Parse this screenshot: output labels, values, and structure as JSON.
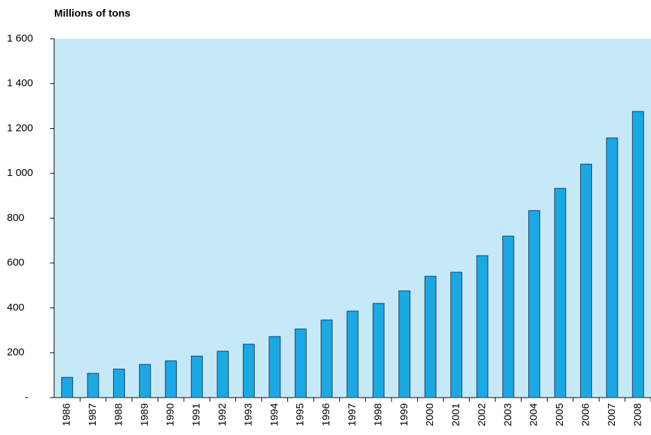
{
  "chart_data": {
    "type": "bar",
    "y_label": "Millions of tons",
    "categories": [
      "1986",
      "1987",
      "1988",
      "1989",
      "1990",
      "1991",
      "1992",
      "1993",
      "1994",
      "1995",
      "1996",
      "1997",
      "1998",
      "1999",
      "2000",
      "2001",
      "2002",
      "2003",
      "2004",
      "2005",
      "2006",
      "2007",
      "2008"
    ],
    "values": [
      90,
      108,
      127,
      148,
      164,
      185,
      207,
      238,
      272,
      306,
      346,
      386,
      420,
      476,
      541,
      559,
      633,
      720,
      834,
      933,
      1041,
      1158,
      1276
    ],
    "color": "#1aa9e4",
    "ylim": [
      0,
      1600
    ],
    "yticks": [
      {
        "value": 0,
        "label": "-"
      },
      200,
      400,
      600,
      800,
      {
        "value": 1000,
        "label": "1 000"
      },
      {
        "value": 1200,
        "label": "1 200"
      },
      {
        "value": 1400,
        "label": "1 400"
      },
      {
        "value": 1600,
        "label": "1 600"
      }
    ]
  }
}
